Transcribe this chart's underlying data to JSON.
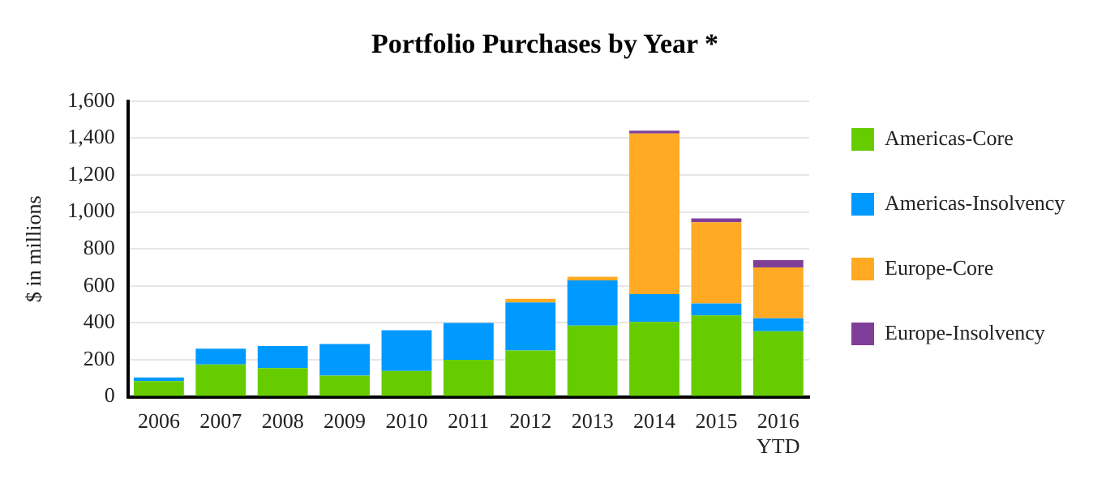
{
  "chart_data": {
    "type": "bar",
    "title": "Portfolio Purchases by Year *",
    "ylabel": "$ in millions",
    "categories": [
      "2006",
      "2007",
      "2008",
      "2009",
      "2010",
      "2011",
      "2012",
      "2013",
      "2014",
      "2015",
      "2016 YTD"
    ],
    "stacked": true,
    "series": [
      {
        "name": "Americas-Core",
        "color": "#66cc00",
        "values": [
          85,
          175,
          155,
          115,
          140,
          200,
          250,
          385,
          405,
          440,
          355
        ]
      },
      {
        "name": "Americas-Insolvency",
        "color": "#0099ff",
        "values": [
          20,
          85,
          120,
          170,
          220,
          200,
          260,
          245,
          150,
          65,
          70
        ]
      },
      {
        "name": "Europe-Core",
        "color": "#ffaa22",
        "values": [
          null,
          null,
          null,
          null,
          null,
          null,
          20,
          20,
          870,
          440,
          275
        ]
      },
      {
        "name": "Europe-Insolvency",
        "color": "#7f3f98",
        "values": [
          null,
          null,
          null,
          null,
          null,
          null,
          null,
          null,
          15,
          20,
          40
        ]
      }
    ],
    "ylim": [
      0,
      1600
    ],
    "yticks": [
      0,
      200,
      400,
      600,
      800,
      {
        "value": 1000,
        "label": "1,000"
      },
      {
        "value": 1200,
        "label": "1,200"
      },
      {
        "value": 1400,
        "label": "1,400"
      },
      {
        "value": 1600,
        "label": "1,600"
      }
    ],
    "grid": "y",
    "legend": "right"
  }
}
